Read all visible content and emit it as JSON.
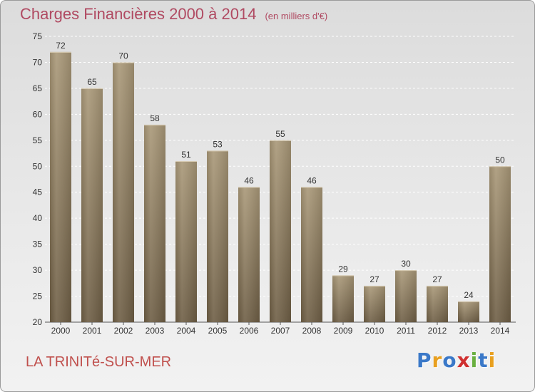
{
  "header": {
    "title": "Charges Financières 2000 à 2014",
    "subtitle": "(en milliers d'€)"
  },
  "footer": {
    "town": "LA TRINITé-SUR-MER",
    "logo": "Proxiti"
  },
  "colors": {
    "bar_top": "#a99878",
    "bar_bottom": "#6e5e45",
    "title": "#b04a62",
    "town": "#c0504d"
  },
  "chart_data": {
    "type": "bar",
    "title": "Charges Financières 2000 à 2014",
    "subtitle": "(en milliers d'€)",
    "xlabel": "",
    "ylabel": "",
    "categories": [
      "2000",
      "2001",
      "2002",
      "2003",
      "2004",
      "2005",
      "2006",
      "2007",
      "2008",
      "2009",
      "2010",
      "2011",
      "2012",
      "2013",
      "2014"
    ],
    "values": [
      72,
      65,
      70,
      58,
      51,
      53,
      46,
      55,
      46,
      29,
      27,
      30,
      27,
      24,
      50
    ],
    "ylim": [
      20,
      75
    ],
    "yticks": [
      20,
      25,
      30,
      35,
      40,
      45,
      50,
      55,
      60,
      65,
      70,
      75
    ],
    "grid": true,
    "legend": "none",
    "data_labels": true
  }
}
